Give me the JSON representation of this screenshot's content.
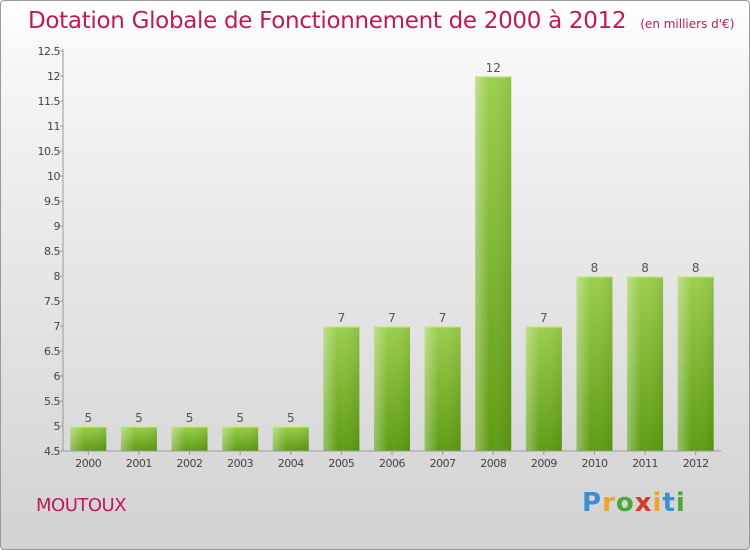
{
  "title": "Dotation Globale de Fonctionnement de 2000 à 2012",
  "subtitle": "(en milliers d'€)",
  "town": "MOUTOUX",
  "logo": "Proxiti",
  "colors": {
    "title": "#c0185c",
    "bar_top": "#9ccf4e",
    "bar_bottom": "#5e9c12"
  },
  "chart_data": {
    "type": "bar",
    "title": "Dotation Globale de Fonctionnement de 2000 à 2012",
    "subtitle": "(en milliers d'€)",
    "xlabel": "",
    "ylabel": "",
    "categories": [
      "2000",
      "2001",
      "2002",
      "2003",
      "2004",
      "2005",
      "2006",
      "2007",
      "2008",
      "2009",
      "2010",
      "2011",
      "2012"
    ],
    "values": [
      5,
      5,
      5,
      5,
      5,
      7,
      7,
      7,
      12,
      7,
      8,
      8,
      8
    ],
    "ylim": [
      4.5,
      12.5
    ],
    "yticks": [
      4.5,
      5,
      5.5,
      6,
      6.5,
      7,
      7.5,
      8,
      8.5,
      9,
      9.5,
      10,
      10.5,
      11,
      11.5,
      12,
      12.5
    ],
    "grid": false,
    "legend": "none"
  }
}
